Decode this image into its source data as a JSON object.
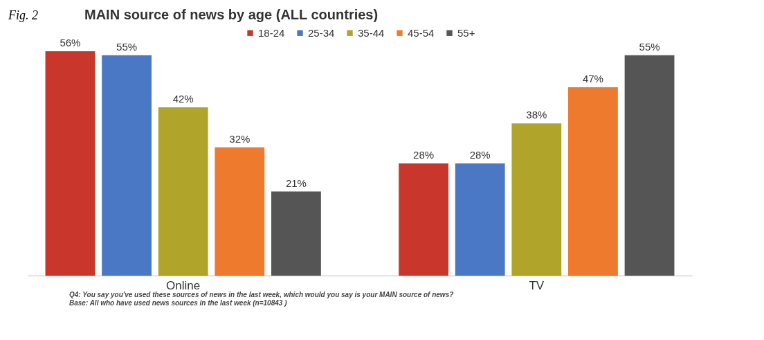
{
  "chart_data": {
    "type": "bar",
    "title": "MAIN source of news by age (ALL countries)",
    "categories": [
      "Online",
      "TV"
    ],
    "series": [
      {
        "name": "18-24",
        "color": "#c9372c",
        "values": [
          56,
          28
        ],
        "value_labels": [
          "56%",
          "28%"
        ]
      },
      {
        "name": "25-34",
        "color": "#4a78c4",
        "values": [
          55,
          28
        ],
        "value_labels": [
          "55%",
          "28%"
        ]
      },
      {
        "name": "35-44",
        "color": "#b0a52a",
        "values": [
          42,
          38
        ],
        "value_labels": [
          "42%",
          "38%"
        ]
      },
      {
        "name": "45-54",
        "color": "#ee7a2d",
        "values": [
          32,
          47
        ],
        "value_labels": [
          "32%",
          "47%"
        ]
      },
      {
        "name": "55+",
        "color": "#555555",
        "values": [
          21,
          55
        ],
        "value_labels": [
          "21%",
          "55%"
        ]
      }
    ],
    "legend": "top",
    "annotations": [
      "Fig. 2",
      "Q4: You say you've used these sources of news in the last week, which would you say is your MAIN source of news? Base: All who have used news sources in the last week (n=10843 )"
    ]
  }
}
